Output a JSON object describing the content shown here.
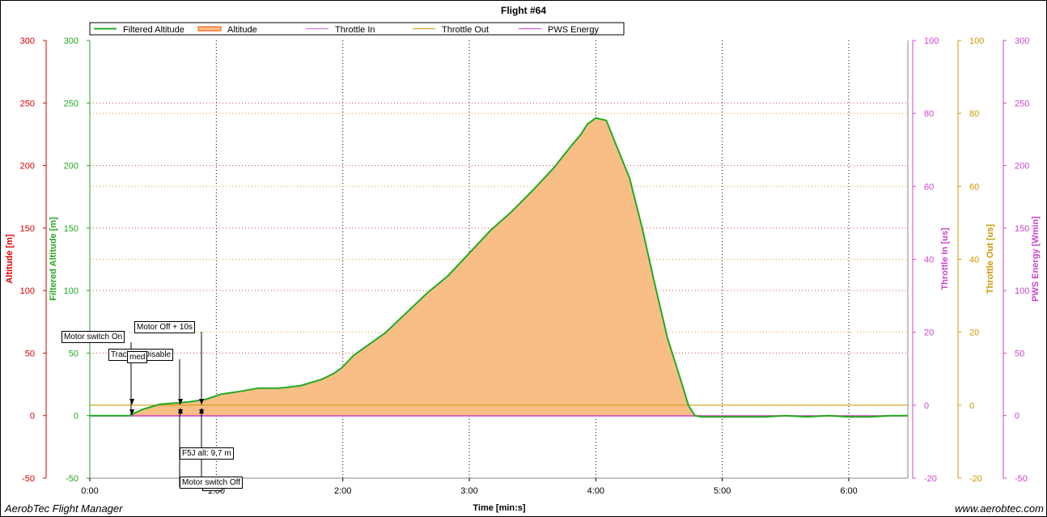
{
  "chart_data": {
    "type": "area",
    "title": "Flight #64",
    "xlabel": "Time [min:s]",
    "xlim": [
      0,
      388
    ],
    "x_ticks": [
      0,
      60,
      120,
      180,
      240,
      300,
      360
    ],
    "x_tick_labels": [
      "0:00",
      "1:00",
      "2:00",
      "3:00",
      "4:00",
      "5:00",
      "6:00"
    ],
    "grid": true,
    "legend_position": "top",
    "legend": [
      "Filtered Altitude",
      "Altitude",
      "Throttle In",
      "Throttle Out",
      "PWS Energy"
    ],
    "axes": [
      {
        "key": "alt",
        "label": "Altitude [m]",
        "side": "left",
        "ylim": [
          -50,
          300
        ],
        "ticks": [
          -50,
          0,
          50,
          100,
          150,
          200,
          250,
          300
        ],
        "color": "#dd0000"
      },
      {
        "key": "falt",
        "label": "Filtered Altitude [m]",
        "side": "left",
        "ylim": [
          -50,
          300
        ],
        "ticks": [
          -50,
          0,
          50,
          100,
          150,
          200,
          250,
          300
        ],
        "color": "#22aa22"
      },
      {
        "key": "thin",
        "label": "Throttle In [us]",
        "side": "right",
        "ylim": [
          -20,
          100
        ],
        "ticks": [
          -20,
          0,
          20,
          40,
          60,
          80,
          100
        ],
        "color": "#cc44cc"
      },
      {
        "key": "thout",
        "label": "Throttle Out [us]",
        "side": "right",
        "ylim": [
          -20,
          100
        ],
        "ticks": [
          -20,
          0,
          20,
          40,
          60,
          80,
          100
        ],
        "color": "#cc9900"
      },
      {
        "key": "pws",
        "label": "PWS Energy [Wmin]",
        "side": "right",
        "ylim": [
          -50,
          300
        ],
        "ticks": [
          -50,
          0,
          50,
          100,
          150,
          200,
          250,
          300
        ],
        "color": "#cc44cc"
      }
    ],
    "series": [
      {
        "name": "Filtered Altitude",
        "axis": "falt",
        "color": "#22aa22",
        "x": [
          0,
          12,
          19,
          20,
          25,
          33,
          40,
          47,
          55,
          62,
          70,
          80,
          90,
          100,
          110,
          116,
          120,
          125,
          130,
          140,
          150,
          160,
          170,
          180,
          190,
          200,
          210,
          220,
          228,
          233,
          236,
          240,
          245,
          250,
          256,
          262,
          268,
          274,
          280,
          284,
          287,
          290,
          295,
          300,
          310,
          320,
          330,
          340,
          350,
          360,
          370,
          380,
          388
        ],
        "y": [
          0,
          0,
          0,
          1,
          5,
          9,
          10,
          11,
          13,
          17,
          19,
          22,
          22,
          24,
          29,
          34,
          39,
          48,
          54,
          66,
          82,
          98,
          112,
          130,
          148,
          163,
          180,
          198,
          215,
          225,
          233,
          238,
          236,
          215,
          190,
          150,
          105,
          62,
          30,
          8,
          0,
          -1,
          -1,
          -1,
          -1,
          -1,
          0,
          -1,
          0,
          -1,
          -1,
          0,
          0
        ]
      },
      {
        "name": "Altitude",
        "axis": "alt",
        "color": "#f5a55a",
        "x": [
          0,
          12,
          19,
          20,
          25,
          33,
          40,
          47,
          55,
          62,
          70,
          80,
          90,
          100,
          110,
          116,
          120,
          125,
          130,
          140,
          150,
          160,
          170,
          180,
          190,
          200,
          210,
          220,
          228,
          233,
          236,
          240,
          245,
          250,
          256,
          262,
          268,
          274,
          280,
          284,
          287,
          290,
          295,
          300,
          310,
          320,
          330,
          340,
          350,
          360,
          370,
          380,
          388
        ],
        "y": [
          0,
          0,
          0,
          1,
          5,
          9,
          10,
          11,
          13,
          17,
          19,
          22,
          22,
          24,
          29,
          34,
          39,
          48,
          54,
          66,
          82,
          98,
          112,
          130,
          148,
          163,
          180,
          198,
          215,
          225,
          233,
          238,
          236,
          215,
          190,
          150,
          105,
          62,
          30,
          8,
          0,
          -1,
          -1,
          -1,
          -1,
          -1,
          0,
          -1,
          0,
          -1,
          -1,
          0,
          0
        ]
      },
      {
        "name": "Throttle In",
        "axis": "thin",
        "color": "#e060e0",
        "x": [
          0,
          388
        ],
        "y": [
          -3,
          -3
        ]
      },
      {
        "name": "Throttle Out",
        "axis": "thout",
        "color": "#cc9900",
        "x": [
          0,
          388
        ],
        "y": [
          0,
          0
        ]
      },
      {
        "name": "PWS Energy",
        "axis": "pws",
        "color": "#cc44cc",
        "x": [
          0,
          388
        ],
        "y": [
          0,
          0
        ]
      }
    ],
    "annotations": [
      {
        "text": "Motor switch On",
        "x": 20,
        "y": 0
      },
      {
        "text": "Tracking Disable",
        "x": 43,
        "y": 10
      },
      {
        "text": "med",
        "x": 43,
        "y": 10
      },
      {
        "text": "Motor Off + 10s",
        "x": 53,
        "y": 10
      },
      {
        "text": "F5J alt: 9,7 m",
        "x": 43,
        "y": 9.7
      },
      {
        "text": "Motor switch Off",
        "x": 53,
        "y": 10
      },
      {
        "text": "able",
        "x": 53,
        "y": 10
      }
    ]
  },
  "footer": {
    "app_name": "AerobTec Flight Manager",
    "website": "www.aerobtec.com"
  }
}
